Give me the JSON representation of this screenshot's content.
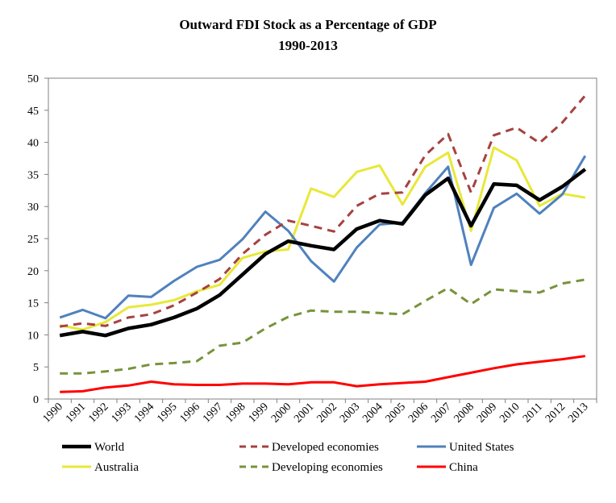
{
  "chart_data": {
    "type": "line",
    "title": "Outward FDI Stock as a Percentage of GDP",
    "subtitle": "1990-2013",
    "xlabel": "",
    "ylabel": "",
    "ylim": [
      0,
      50
    ],
    "yticks": [
      0,
      5,
      10,
      15,
      20,
      25,
      30,
      35,
      40,
      45,
      50
    ],
    "grid": false,
    "legend_position": "bottom",
    "categories": [
      "1990",
      "1991",
      "1992",
      "1993",
      "1994",
      "1995",
      "1996",
      "1997",
      "1998",
      "1999",
      "2000",
      "2001",
      "2002",
      "2003",
      "2004",
      "2005",
      "2006",
      "2007",
      "2008",
      "2009",
      "2010",
      "2011",
      "2012",
      "2013"
    ],
    "series": [
      {
        "name": "World",
        "color": "#000000",
        "dash": "solid",
        "width": 4.5,
        "values": [
          9.9,
          10.5,
          9.9,
          11.0,
          11.6,
          12.7,
          14.1,
          16.2,
          19.4,
          22.6,
          24.6,
          23.9,
          23.3,
          26.5,
          27.8,
          27.3,
          31.8,
          34.4,
          27.0,
          33.5,
          33.3,
          31.0,
          33.1,
          35.8
        ]
      },
      {
        "name": "Developed economies",
        "color": "#a64140",
        "dash": "dashed",
        "width": 3,
        "values": [
          11.3,
          11.8,
          11.4,
          12.7,
          13.2,
          14.6,
          16.6,
          18.7,
          22.6,
          25.6,
          27.8,
          27.0,
          26.1,
          30.1,
          32.0,
          32.2,
          38.0,
          41.3,
          32.2,
          41.1,
          42.3,
          39.9,
          43.1,
          47.3
        ]
      },
      {
        "name": "United States",
        "color": "#4f81bd",
        "dash": "solid",
        "width": 3,
        "values": [
          12.7,
          13.9,
          12.6,
          16.1,
          15.9,
          18.4,
          20.6,
          21.7,
          24.9,
          29.2,
          26.2,
          21.5,
          18.3,
          23.6,
          27.2,
          27.5,
          32.1,
          36.2,
          20.9,
          29.8,
          32.0,
          28.9,
          31.9,
          37.9
        ]
      },
      {
        "name": "Australia",
        "color": "#e8e83a",
        "dash": "solid",
        "width": 3,
        "values": [
          11.5,
          10.8,
          12.0,
          14.3,
          14.7,
          15.4,
          16.8,
          17.8,
          22.0,
          23.0,
          23.3,
          32.8,
          31.5,
          35.4,
          36.4,
          30.3,
          36.2,
          38.4,
          26.2,
          39.2,
          37.2,
          30.1,
          32.0,
          31.4
        ]
      },
      {
        "name": "Developing economies",
        "color": "#77933c",
        "dash": "dashed",
        "width": 3,
        "values": [
          4.0,
          4.0,
          4.3,
          4.7,
          5.4,
          5.6,
          5.9,
          8.3,
          8.8,
          11.0,
          12.8,
          13.8,
          13.6,
          13.6,
          13.4,
          13.2,
          15.3,
          17.3,
          14.8,
          17.1,
          16.8,
          16.6,
          18.0,
          18.6
        ]
      },
      {
        "name": "China",
        "color": "#ff0000",
        "dash": "solid",
        "width": 3,
        "values": [
          1.1,
          1.2,
          1.8,
          2.1,
          2.7,
          2.3,
          2.2,
          2.2,
          2.4,
          2.4,
          2.3,
          2.6,
          2.6,
          2.0,
          2.3,
          2.5,
          2.7,
          3.4,
          4.1,
          4.8,
          5.4,
          5.8,
          6.2,
          6.7
        ]
      }
    ]
  }
}
